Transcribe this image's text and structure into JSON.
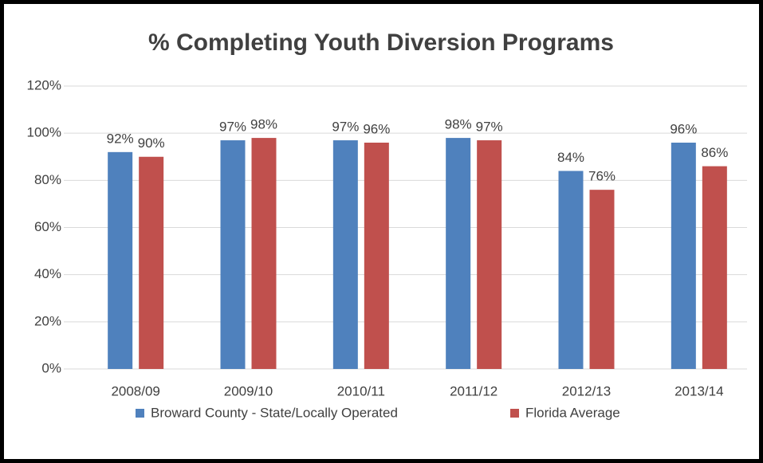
{
  "chart_data": {
    "type": "bar",
    "title": "% Completing Youth Diversion Programs",
    "categories": [
      "2008/09",
      "2009/10",
      "2010/11",
      "2011/12",
      "2012/13",
      "2013/14"
    ],
    "series": [
      {
        "name": "Broward County - State/Locally Operated",
        "color": "#4f81bd",
        "values": [
          92,
          97,
          97,
          98,
          84,
          96
        ],
        "value_labels": [
          "92%",
          "97%",
          "97%",
          "98%",
          "84%",
          "96%"
        ]
      },
      {
        "name": "Florida Average",
        "color": "#c0504d",
        "values": [
          90,
          98,
          96,
          97,
          76,
          86
        ],
        "value_labels": [
          "90%",
          "98%",
          "96%",
          "97%",
          "76%",
          "86%"
        ]
      }
    ],
    "ylim": [
      0,
      120
    ],
    "yticks": [
      {
        "value": 0,
        "label": "0%"
      },
      {
        "value": 20,
        "label": "20%"
      },
      {
        "value": 40,
        "label": "40%"
      },
      {
        "value": 60,
        "label": "60%"
      },
      {
        "value": 80,
        "label": "80%"
      },
      {
        "value": 100,
        "label": "100%"
      },
      {
        "value": 120,
        "label": "120%"
      }
    ],
    "grid": true,
    "legend": "bottom"
  }
}
